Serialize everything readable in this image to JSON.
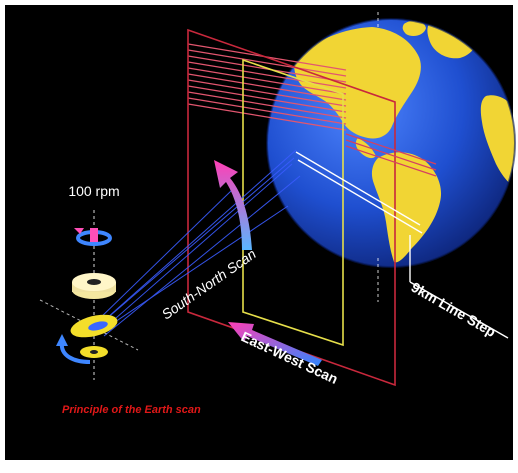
{
  "labels": {
    "rpm": "100 rpm",
    "south_north": "South-North Scan",
    "east_west": "East-West Scan",
    "line_step": "9km Line Step",
    "caption": "Principle of the Earth scan"
  },
  "colors": {
    "background": "#000000",
    "ocean": "#1f4fd0",
    "land": "#f1d534",
    "frame_red": "#c8283c",
    "frame_yellow": "#e6df4a",
    "beam": "#5a7dff",
    "caption": "#e01818"
  }
}
